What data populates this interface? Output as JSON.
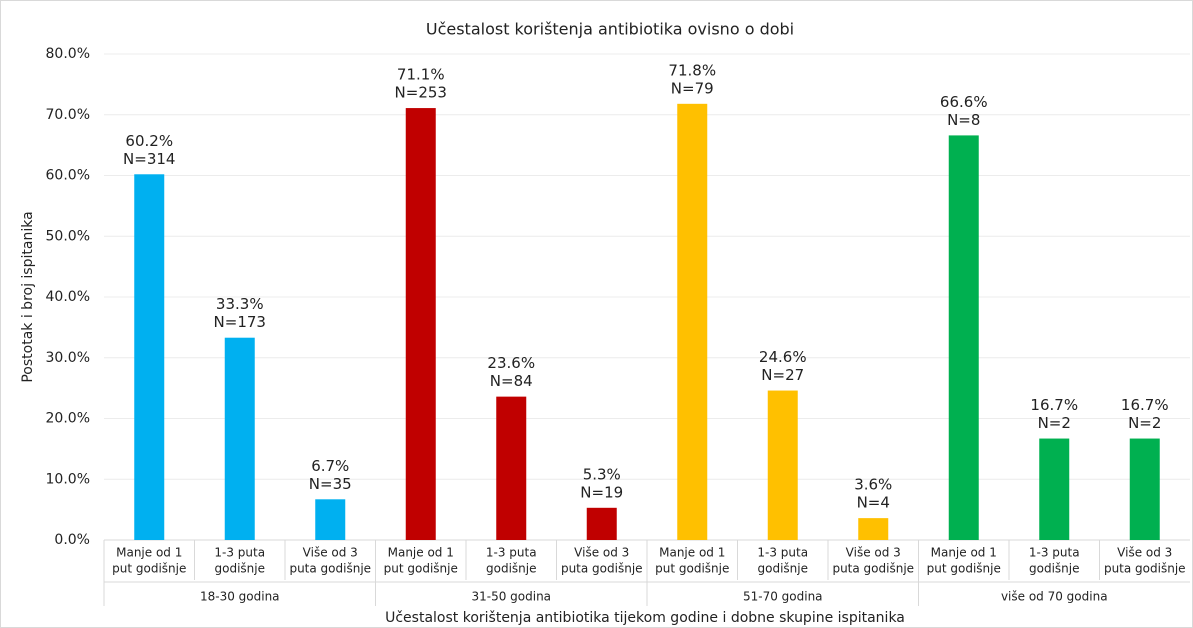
{
  "chart_data": {
    "type": "bar",
    "title": "Učestalost korištenja antibiotika ovisno o dobi",
    "x_label": "Učestalost korištenja antibiotika tijekom godine i dobne skupine ispitanika",
    "y_label": "Postotak i broj ispitanika",
    "ylim": [
      0,
      80
    ],
    "yticks": [
      {
        "value": 0,
        "label": "0.0%"
      },
      {
        "value": 10,
        "label": "10.0%"
      },
      {
        "value": 20,
        "label": "20.0%"
      },
      {
        "value": 30,
        "label": "30.0%"
      },
      {
        "value": 40,
        "label": "40.0%"
      },
      {
        "value": 50,
        "label": "50.0%"
      },
      {
        "value": 60,
        "label": "60.0%"
      },
      {
        "value": 70,
        "label": "70.0%"
      },
      {
        "value": 80,
        "label": "80.0%"
      }
    ],
    "grid": true,
    "groups": [
      {
        "name": "18-30 godina",
        "color": "#00b0f0",
        "categories": [
          [
            "Manje od 1",
            "put godišnje"
          ],
          [
            "1-3 puta",
            "godišnje"
          ],
          [
            "Više od 3",
            "puta godišnje"
          ]
        ],
        "values": [
          60.2,
          33.3,
          6.7
        ],
        "value_labels": [
          "60.2%",
          "33.3%",
          "6.7%"
        ],
        "n_labels": [
          "N=314",
          "N=173",
          "N=35"
        ]
      },
      {
        "name": "31-50 godina",
        "color": "#c00000",
        "categories": [
          [
            "Manje od 1",
            "put godišnje"
          ],
          [
            "1-3 puta",
            "godišnje"
          ],
          [
            "Više od 3",
            "puta godišnje"
          ]
        ],
        "values": [
          71.1,
          23.6,
          5.3
        ],
        "value_labels": [
          "71.1%",
          "23.6%",
          "5.3%"
        ],
        "n_labels": [
          "N=253",
          "N=84",
          "N=19"
        ]
      },
      {
        "name": "51-70 godina",
        "color": "#ffc000",
        "categories": [
          [
            "Manje od 1",
            "put godišnje"
          ],
          [
            "1-3 puta",
            "godišnje"
          ],
          [
            "Više od 3",
            "puta godišnje"
          ]
        ],
        "values": [
          71.8,
          24.6,
          3.6
        ],
        "value_labels": [
          "71.8%",
          "24.6%",
          "3.6%"
        ],
        "n_labels": [
          "N=79",
          "N=27",
          "N=4"
        ]
      },
      {
        "name": "više od 70 godina",
        "color": "#00b050",
        "categories": [
          [
            "Manje od 1",
            "put godišnje"
          ],
          [
            "1-3 puta",
            "godišnje"
          ],
          [
            "Više od 3",
            "puta godišnje"
          ]
        ],
        "values": [
          66.6,
          16.7,
          16.7
        ],
        "value_labels": [
          "66.6%",
          "16.7%",
          "16.7%"
        ],
        "n_labels": [
          "N=8",
          "N=2",
          "N=2"
        ]
      }
    ]
  }
}
